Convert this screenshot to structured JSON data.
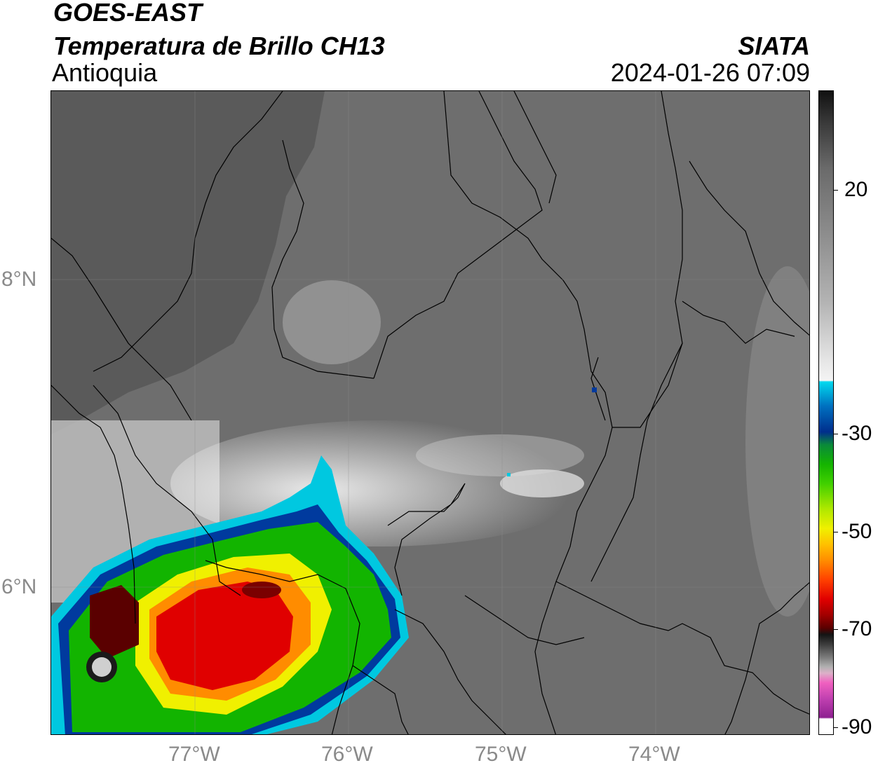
{
  "header": {
    "satellite": "GOES-EAST",
    "product": "Temperatura de Brillo CH13",
    "region": "Antioquia",
    "agency": "SIATA",
    "datetime": "2024-01-26 07:09"
  },
  "map": {
    "lat_labels": [
      "8°N",
      "6°N"
    ],
    "lon_labels": [
      "77°W",
      "76°W",
      "75°W",
      "74°W"
    ],
    "colors": {
      "background_gray": "#6e6e6e",
      "warm_cloud": "#d8d8d8",
      "cold_cyan": "#00c8e0",
      "cold_blue": "#003a9e",
      "green": "#12b400",
      "yellow": "#f0f000",
      "orange": "#ff8c00",
      "red": "#e00000",
      "dark_red": "#5a0000"
    }
  },
  "colorbar": {
    "ticks": [
      "20",
      "-30",
      "-50",
      "-70",
      "-90"
    ],
    "unit": ""
  }
}
